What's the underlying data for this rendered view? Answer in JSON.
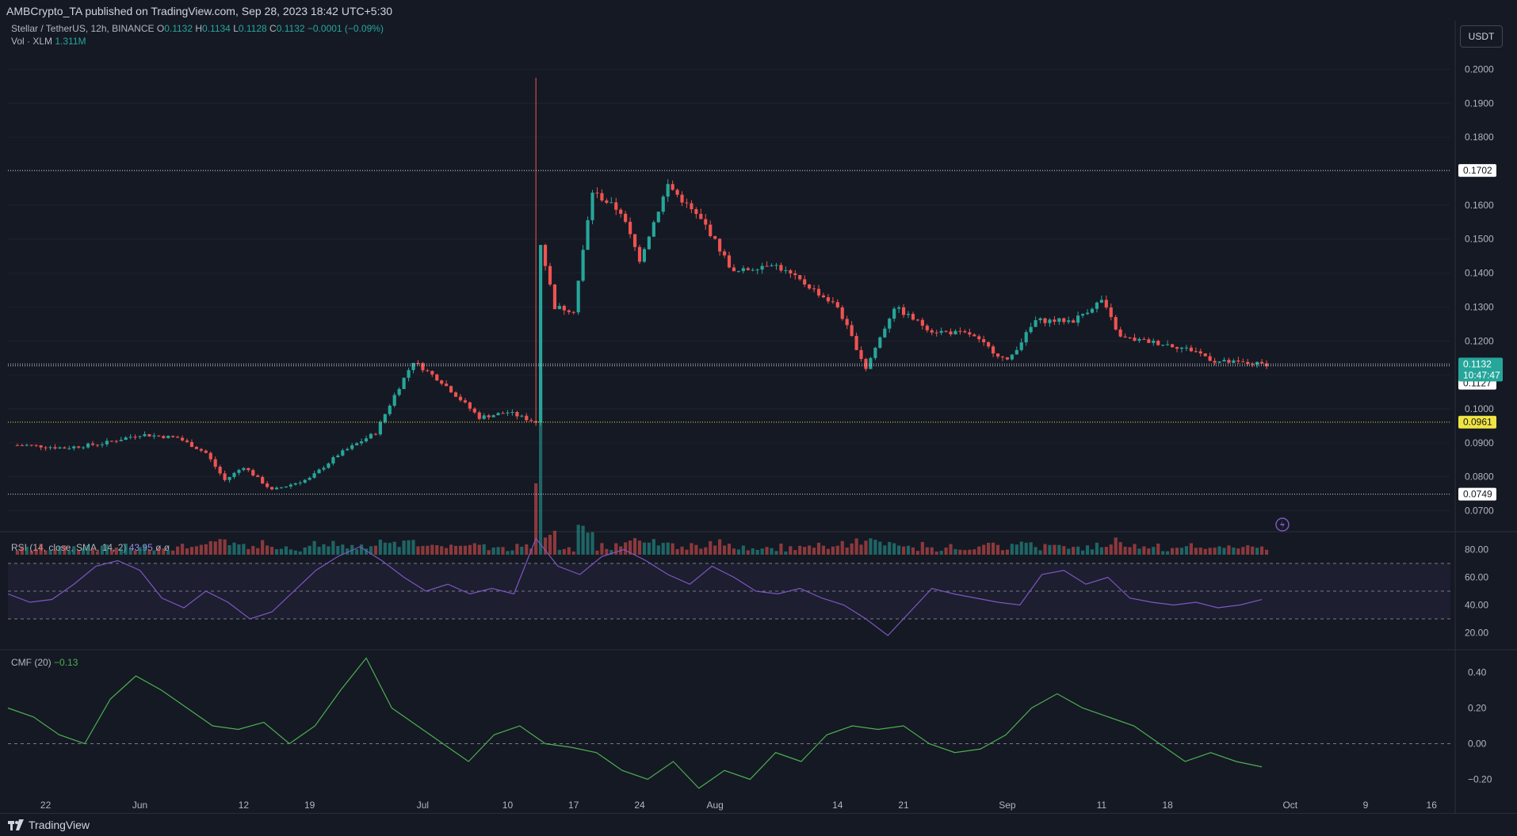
{
  "header": {
    "publisher": "AMBCrypto_TA published on TradingView.com, Sep 28, 2023 18:42 UTC+5:30"
  },
  "legend": {
    "symbol": "Stellar / TetherUS, 12h, BINANCE",
    "o_label": "O",
    "o": "0.1132",
    "h_label": "H",
    "h": "0.1134",
    "l_label": "L",
    "l": "0.1128",
    "c_label": "C",
    "c": "0.1132",
    "change": "−0.0001 (−0.09%)",
    "vol_label": "Vol · XLM",
    "vol": "1.311M",
    "rsi_label": "RSI (14, close, SMA, 14, 2)",
    "rsi_value": "43.95",
    "rsi_extra": "ø ø",
    "cmf_label": "CMF (20)",
    "cmf_value": "−0.13"
  },
  "currency_button": "USDT",
  "price_axis": [
    "0.2000",
    "0.1900",
    "0.1800",
    "0.1700",
    "0.1600",
    "0.1500",
    "0.1400",
    "0.1300",
    "0.1200",
    "0.1100",
    "0.1000",
    "0.0900",
    "0.0800",
    "0.0700"
  ],
  "price_tags": {
    "resistance": "0.1702",
    "last_price": "0.1132",
    "countdown": "10:47:47",
    "support_mid": "0.1127",
    "support_yellow": "0.0961",
    "support_low": "0.0749"
  },
  "rsi_axis": [
    "80.00",
    "60.00",
    "40.00",
    "20.00"
  ],
  "cmf_axis": [
    "0.40",
    "0.20",
    "0.00",
    "−0.20"
  ],
  "time_axis": [
    "22",
    "Jun",
    "12",
    "19",
    "Jul",
    "10",
    "17",
    "24",
    "Aug",
    "14",
    "21",
    "Sep",
    "11",
    "18",
    "Oct",
    "9",
    "16"
  ],
  "footer": {
    "brand": "TradingView"
  },
  "colors": {
    "up": "#26a69a",
    "down": "#ef5350",
    "rsi": "#7e57c2",
    "cmf": "#4caf50",
    "yellow": "#f0e442",
    "bg": "#151924"
  },
  "chart_data": {
    "type": "candlestick",
    "timeframe": "12h",
    "ylim": [
      0.065,
      0.205
    ],
    "price_points": [
      {
        "date": "2023-05-20",
        "price": 0.0893
      },
      {
        "date": "2023-05-24",
        "price": 0.0885
      },
      {
        "date": "2023-05-28",
        "price": 0.0898
      },
      {
        "date": "2023-06-01",
        "price": 0.0925
      },
      {
        "date": "2023-06-05",
        "price": 0.0915
      },
      {
        "date": "2023-06-08",
        "price": 0.087
      },
      {
        "date": "2023-06-10",
        "price": 0.079
      },
      {
        "date": "2023-06-12",
        "price": 0.083
      },
      {
        "date": "2023-06-15",
        "price": 0.076
      },
      {
        "date": "2023-06-19",
        "price": 0.0795
      },
      {
        "date": "2023-06-22",
        "price": 0.0865
      },
      {
        "date": "2023-06-26",
        "price": 0.093
      },
      {
        "date": "2023-06-28",
        "price": 0.104
      },
      {
        "date": "2023-06-30",
        "price": 0.114
      },
      {
        "date": "2023-07-03",
        "price": 0.108
      },
      {
        "date": "2023-07-07",
        "price": 0.0975
      },
      {
        "date": "2023-07-10",
        "price": 0.099
      },
      {
        "date": "2023-07-13",
        "price": 0.0961
      },
      {
        "date": "2023-07-13",
        "price": 0.155
      },
      {
        "date": "2023-07-15",
        "price": 0.13
      },
      {
        "date": "2023-07-17",
        "price": 0.129
      },
      {
        "date": "2023-07-19",
        "price": 0.164
      },
      {
        "date": "2023-07-22",
        "price": 0.158
      },
      {
        "date": "2023-07-24",
        "price": 0.144
      },
      {
        "date": "2023-07-27",
        "price": 0.166
      },
      {
        "date": "2023-07-31",
        "price": 0.154
      },
      {
        "date": "2023-08-03",
        "price": 0.14
      },
      {
        "date": "2023-08-07",
        "price": 0.143
      },
      {
        "date": "2023-08-11",
        "price": 0.136
      },
      {
        "date": "2023-08-14",
        "price": 0.13
      },
      {
        "date": "2023-08-17",
        "price": 0.112
      },
      {
        "date": "2023-08-20",
        "price": 0.13
      },
      {
        "date": "2023-08-24",
        "price": 0.123
      },
      {
        "date": "2023-08-28",
        "price": 0.122
      },
      {
        "date": "2023-09-01",
        "price": 0.114
      },
      {
        "date": "2023-09-04",
        "price": 0.126
      },
      {
        "date": "2023-09-08",
        "price": 0.126
      },
      {
        "date": "2023-09-11",
        "price": 0.132
      },
      {
        "date": "2023-09-13",
        "price": 0.121
      },
      {
        "date": "2023-09-18",
        "price": 0.119
      },
      {
        "date": "2023-09-21",
        "price": 0.117
      },
      {
        "date": "2023-09-23",
        "price": 0.114
      },
      {
        "date": "2023-09-26",
        "price": 0.1135
      },
      {
        "date": "2023-09-28",
        "price": 0.1132
      }
    ],
    "volume_spike_date": "2023-07-13",
    "horizontal_levels": [
      0.1702,
      0.1127,
      0.0961,
      0.0749
    ],
    "rsi": {
      "ylim": [
        10,
        90
      ],
      "bands": [
        30,
        50,
        70
      ],
      "last": 43.95,
      "points": [
        48,
        42,
        44,
        55,
        68,
        72,
        65,
        45,
        38,
        50,
        42,
        30,
        35,
        50,
        65,
        75,
        82,
        72,
        60,
        50,
        55,
        48,
        52,
        48,
        88,
        68,
        62,
        75,
        80,
        72,
        62,
        55,
        68,
        60,
        50,
        48,
        52,
        45,
        40,
        30,
        18,
        35,
        52,
        48,
        45,
        42,
        40,
        62,
        65,
        55,
        60,
        45,
        42,
        40,
        42,
        38,
        40,
        43.95
      ]
    },
    "cmf": {
      "ylim": [
        -0.3,
        0.5
      ],
      "zero": 0.0,
      "last": -0.13,
      "points": [
        0.2,
        0.15,
        0.05,
        0.0,
        0.25,
        0.38,
        0.3,
        0.2,
        0.1,
        0.08,
        0.12,
        0.0,
        0.1,
        0.3,
        0.48,
        0.2,
        0.1,
        0.0,
        -0.1,
        0.05,
        0.1,
        0.0,
        -0.02,
        -0.05,
        -0.15,
        -0.2,
        -0.1,
        -0.25,
        -0.15,
        -0.2,
        -0.05,
        -0.1,
        0.05,
        0.1,
        0.08,
        0.1,
        0.0,
        -0.05,
        -0.03,
        0.05,
        0.2,
        0.28,
        0.2,
        0.15,
        0.1,
        0.0,
        -0.1,
        -0.05,
        -0.1,
        -0.13
      ]
    }
  }
}
